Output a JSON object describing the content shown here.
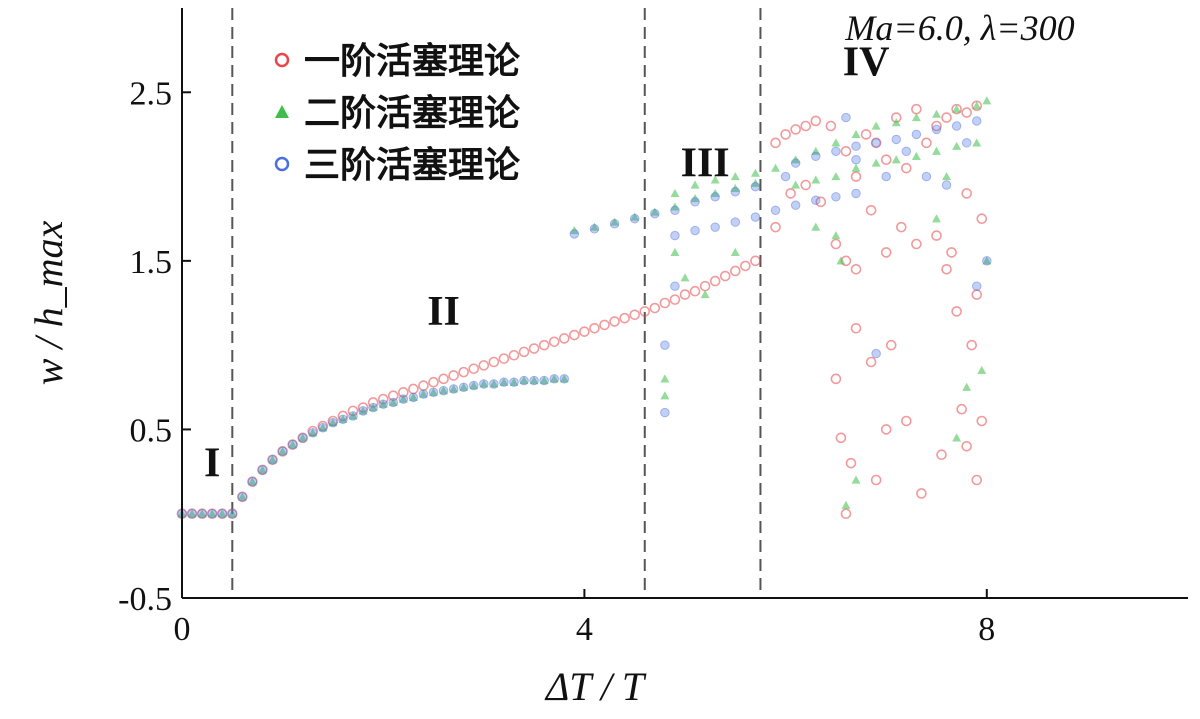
{
  "chart_data": {
    "type": "scatter",
    "title": "",
    "annotation": "Ma=6.0, λ=300",
    "xlabel": "ΔT / T",
    "ylabel": "w / h_max",
    "xlim": [
      0,
      10
    ],
    "ylim": [
      -0.5,
      3.0
    ],
    "xticks": [
      0,
      4,
      8
    ],
    "xtick_labels": [
      "0",
      "4",
      "8"
    ],
    "yticks": [
      -0.5,
      0.5,
      1.5,
      2.5
    ],
    "ytick_labels": [
      "-0.5",
      "0.5",
      "1.5",
      "2.5"
    ],
    "dividers": [
      0.5,
      4.6,
      5.75
    ],
    "regions": [
      {
        "label": "I",
        "x": 0.3,
        "y": 0.22
      },
      {
        "label": "II",
        "x": 2.6,
        "y": 1.12
      },
      {
        "label": "III",
        "x": 5.2,
        "y": 2.0
      },
      {
        "label": "IV",
        "x": 6.8,
        "y": 2.6
      }
    ],
    "legend": {
      "position": "top-left",
      "entries": [
        {
          "name": "一阶活塞理论",
          "marker": "circle",
          "color": "#e8474a"
        },
        {
          "name": "二阶活塞理论",
          "marker": "triangle",
          "color": "#3fbf4a"
        },
        {
          "name": "三阶活塞理论",
          "marker": "circle",
          "color": "#4a6fe0"
        }
      ]
    },
    "series": [
      {
        "name": "一阶活塞理论",
        "color": "#e8474a",
        "marker": "circle",
        "points": [
          [
            0.0,
            0.0
          ],
          [
            0.1,
            0.0
          ],
          [
            0.2,
            0.0
          ],
          [
            0.3,
            0.0
          ],
          [
            0.4,
            0.0
          ],
          [
            0.5,
            0.0
          ],
          [
            0.6,
            0.1
          ],
          [
            0.7,
            0.19
          ],
          [
            0.8,
            0.26
          ],
          [
            0.9,
            0.32
          ],
          [
            1.0,
            0.37
          ],
          [
            1.1,
            0.41
          ],
          [
            1.2,
            0.45
          ],
          [
            1.3,
            0.49
          ],
          [
            1.4,
            0.52
          ],
          [
            1.5,
            0.55
          ],
          [
            1.6,
            0.58
          ],
          [
            1.7,
            0.61
          ],
          [
            1.8,
            0.63
          ],
          [
            1.9,
            0.66
          ],
          [
            2.0,
            0.68
          ],
          [
            2.1,
            0.7
          ],
          [
            2.2,
            0.72
          ],
          [
            2.3,
            0.74
          ],
          [
            2.4,
            0.76
          ],
          [
            2.5,
            0.78
          ],
          [
            2.6,
            0.8
          ],
          [
            2.7,
            0.82
          ],
          [
            2.8,
            0.84
          ],
          [
            2.9,
            0.86
          ],
          [
            3.0,
            0.88
          ],
          [
            3.1,
            0.9
          ],
          [
            3.2,
            0.92
          ],
          [
            3.3,
            0.94
          ],
          [
            3.4,
            0.96
          ],
          [
            3.5,
            0.98
          ],
          [
            3.6,
            1.0
          ],
          [
            3.7,
            1.02
          ],
          [
            3.8,
            1.04
          ],
          [
            3.9,
            1.06
          ],
          [
            4.0,
            1.08
          ],
          [
            4.1,
            1.1
          ],
          [
            4.2,
            1.12
          ],
          [
            4.3,
            1.14
          ],
          [
            4.4,
            1.16
          ],
          [
            4.5,
            1.18
          ],
          [
            4.6,
            1.2
          ],
          [
            4.7,
            1.22
          ],
          [
            4.8,
            1.25
          ],
          [
            4.9,
            1.27
          ],
          [
            5.0,
            1.3
          ],
          [
            5.1,
            1.32
          ],
          [
            5.2,
            1.35
          ],
          [
            5.3,
            1.38
          ],
          [
            5.4,
            1.41
          ],
          [
            5.5,
            1.44
          ],
          [
            5.6,
            1.47
          ],
          [
            5.7,
            1.5
          ],
          [
            5.9,
            2.2
          ],
          [
            6.0,
            2.25
          ],
          [
            6.1,
            2.28
          ],
          [
            6.2,
            2.3
          ],
          [
            6.3,
            2.33
          ],
          [
            6.45,
            2.3
          ],
          [
            6.6,
            2.15
          ],
          [
            6.7,
            2.0
          ],
          [
            6.8,
            2.25
          ],
          [
            6.9,
            2.2
          ],
          [
            7.0,
            2.1
          ],
          [
            7.1,
            2.35
          ],
          [
            7.2,
            2.05
          ],
          [
            7.3,
            2.4
          ],
          [
            7.4,
            2.2
          ],
          [
            7.5,
            2.3
          ],
          [
            7.6,
            2.35
          ],
          [
            7.7,
            2.4
          ],
          [
            7.8,
            2.38
          ],
          [
            7.9,
            2.42
          ],
          [
            5.9,
            1.7
          ],
          [
            6.05,
            1.9
          ],
          [
            6.2,
            1.95
          ],
          [
            6.35,
            1.85
          ],
          [
            6.5,
            1.6
          ],
          [
            6.6,
            1.5
          ],
          [
            6.7,
            1.45
          ],
          [
            6.85,
            1.8
          ],
          [
            7.0,
            1.55
          ],
          [
            7.15,
            1.7
          ],
          [
            7.3,
            1.6
          ],
          [
            7.5,
            1.65
          ],
          [
            7.65,
            1.55
          ],
          [
            7.8,
            1.9
          ],
          [
            7.95,
            1.75
          ],
          [
            6.5,
            0.8
          ],
          [
            6.55,
            0.45
          ],
          [
            6.6,
            0.0
          ],
          [
            6.65,
            0.3
          ],
          [
            6.7,
            1.1
          ],
          [
            6.85,
            0.9
          ],
          [
            6.9,
            0.2
          ],
          [
            7.0,
            0.5
          ],
          [
            7.05,
            1.0
          ],
          [
            7.2,
            0.55
          ],
          [
            7.35,
            0.12
          ],
          [
            7.55,
            0.35
          ],
          [
            7.7,
            1.2
          ],
          [
            7.75,
            0.62
          ],
          [
            7.8,
            0.4
          ],
          [
            7.85,
            1.0
          ],
          [
            7.9,
            1.3
          ],
          [
            7.95,
            0.55
          ],
          [
            7.9,
            0.2
          ],
          [
            7.6,
            1.45
          ]
        ]
      },
      {
        "name": "二阶活塞理论",
        "color": "#3fbf4a",
        "marker": "triangle",
        "points": [
          [
            0.0,
            0.0
          ],
          [
            0.1,
            0.0
          ],
          [
            0.2,
            0.0
          ],
          [
            0.3,
            0.0
          ],
          [
            0.4,
            0.0
          ],
          [
            0.5,
            0.0
          ],
          [
            0.6,
            0.1
          ],
          [
            0.7,
            0.19
          ],
          [
            0.8,
            0.26
          ],
          [
            0.9,
            0.32
          ],
          [
            1.0,
            0.37
          ],
          [
            1.1,
            0.41
          ],
          [
            1.2,
            0.45
          ],
          [
            1.3,
            0.48
          ],
          [
            1.4,
            0.51
          ],
          [
            1.5,
            0.54
          ],
          [
            1.6,
            0.56
          ],
          [
            1.7,
            0.58
          ],
          [
            1.8,
            0.61
          ],
          [
            1.9,
            0.63
          ],
          [
            2.0,
            0.65
          ],
          [
            2.1,
            0.66
          ],
          [
            2.2,
            0.68
          ],
          [
            2.3,
            0.69
          ],
          [
            2.4,
            0.71
          ],
          [
            2.5,
            0.72
          ],
          [
            2.6,
            0.73
          ],
          [
            2.7,
            0.74
          ],
          [
            2.8,
            0.75
          ],
          [
            2.9,
            0.76
          ],
          [
            3.0,
            0.77
          ],
          [
            3.1,
            0.77
          ],
          [
            3.2,
            0.78
          ],
          [
            3.3,
            0.78
          ],
          [
            3.4,
            0.79
          ],
          [
            3.5,
            0.79
          ],
          [
            3.6,
            0.79
          ],
          [
            3.7,
            0.8
          ],
          [
            3.8,
            0.8
          ],
          [
            3.9,
            1.68
          ],
          [
            4.1,
            1.7
          ],
          [
            4.3,
            1.73
          ],
          [
            4.5,
            1.76
          ],
          [
            4.7,
            1.79
          ],
          [
            4.9,
            1.82
          ],
          [
            5.1,
            1.87
          ],
          [
            5.3,
            1.9
          ],
          [
            5.5,
            1.93
          ],
          [
            5.7,
            1.96
          ],
          [
            4.9,
            1.9
          ],
          [
            5.1,
            1.95
          ],
          [
            5.3,
            1.98
          ],
          [
            5.5,
            2.0
          ],
          [
            5.7,
            2.02
          ],
          [
            5.9,
            2.05
          ],
          [
            6.1,
            2.1
          ],
          [
            6.3,
            2.15
          ],
          [
            6.5,
            2.2
          ],
          [
            6.7,
            2.25
          ],
          [
            6.9,
            2.3
          ],
          [
            7.1,
            2.32
          ],
          [
            7.3,
            2.35
          ],
          [
            7.5,
            2.37
          ],
          [
            7.7,
            2.4
          ],
          [
            7.9,
            2.42
          ],
          [
            8.0,
            2.45
          ],
          [
            6.1,
            1.95
          ],
          [
            6.3,
            1.98
          ],
          [
            6.5,
            2.0
          ],
          [
            6.7,
            2.05
          ],
          [
            6.9,
            2.08
          ],
          [
            7.1,
            2.1
          ],
          [
            7.3,
            2.12
          ],
          [
            7.5,
            2.15
          ],
          [
            7.7,
            2.18
          ],
          [
            7.9,
            2.2
          ],
          [
            4.9,
            1.55
          ],
          [
            5.0,
            1.4
          ],
          [
            5.2,
            1.3
          ],
          [
            4.8,
            0.8
          ],
          [
            4.8,
            0.7
          ],
          [
            5.5,
            1.55
          ],
          [
            6.3,
            1.7
          ],
          [
            6.5,
            1.65
          ],
          [
            6.55,
            1.5
          ],
          [
            6.6,
            0.05
          ],
          [
            6.7,
            0.2
          ],
          [
            7.7,
            0.45
          ],
          [
            7.8,
            0.75
          ],
          [
            7.95,
            0.85
          ],
          [
            8.0,
            1.5
          ],
          [
            7.5,
            1.75
          ],
          [
            7.6,
            2.0
          ]
        ]
      },
      {
        "name": "三阶活塞理论",
        "color": "#4a6fe0",
        "marker": "circle",
        "points": [
          [
            0.0,
            0.0
          ],
          [
            0.1,
            0.0
          ],
          [
            0.2,
            0.0
          ],
          [
            0.3,
            0.0
          ],
          [
            0.4,
            0.0
          ],
          [
            0.5,
            0.0
          ],
          [
            0.6,
            0.1
          ],
          [
            0.7,
            0.19
          ],
          [
            0.8,
            0.26
          ],
          [
            0.9,
            0.32
          ],
          [
            1.0,
            0.37
          ],
          [
            1.1,
            0.41
          ],
          [
            1.2,
            0.45
          ],
          [
            1.3,
            0.48
          ],
          [
            1.4,
            0.51
          ],
          [
            1.5,
            0.54
          ],
          [
            1.6,
            0.56
          ],
          [
            1.7,
            0.58
          ],
          [
            1.8,
            0.61
          ],
          [
            1.9,
            0.63
          ],
          [
            2.0,
            0.65
          ],
          [
            2.1,
            0.66
          ],
          [
            2.2,
            0.68
          ],
          [
            2.3,
            0.69
          ],
          [
            2.4,
            0.71
          ],
          [
            2.5,
            0.72
          ],
          [
            2.6,
            0.73
          ],
          [
            2.7,
            0.74
          ],
          [
            2.8,
            0.75
          ],
          [
            2.9,
            0.76
          ],
          [
            3.0,
            0.77
          ],
          [
            3.1,
            0.77
          ],
          [
            3.2,
            0.78
          ],
          [
            3.3,
            0.78
          ],
          [
            3.4,
            0.79
          ],
          [
            3.5,
            0.79
          ],
          [
            3.6,
            0.79
          ],
          [
            3.7,
            0.8
          ],
          [
            3.8,
            0.8
          ],
          [
            3.9,
            1.66
          ],
          [
            4.1,
            1.69
          ],
          [
            4.3,
            1.72
          ],
          [
            4.5,
            1.75
          ],
          [
            4.7,
            1.78
          ],
          [
            4.9,
            1.8
          ],
          [
            5.1,
            1.85
          ],
          [
            5.3,
            1.88
          ],
          [
            5.5,
            1.91
          ],
          [
            5.7,
            1.94
          ],
          [
            4.9,
            1.65
          ],
          [
            5.1,
            1.68
          ],
          [
            5.3,
            1.7
          ],
          [
            5.5,
            1.73
          ],
          [
            5.7,
            1.76
          ],
          [
            5.9,
            1.8
          ],
          [
            6.1,
            1.83
          ],
          [
            6.3,
            1.86
          ],
          [
            6.5,
            1.88
          ],
          [
            6.7,
            1.9
          ],
          [
            6.1,
            2.08
          ],
          [
            6.3,
            2.12
          ],
          [
            6.5,
            2.15
          ],
          [
            6.7,
            2.18
          ],
          [
            6.9,
            2.2
          ],
          [
            7.1,
            2.22
          ],
          [
            7.3,
            2.25
          ],
          [
            7.5,
            2.28
          ],
          [
            7.7,
            2.3
          ],
          [
            7.9,
            2.33
          ],
          [
            4.8,
            0.6
          ],
          [
            4.8,
            1.0
          ],
          [
            4.9,
            1.35
          ],
          [
            6.0,
            2.0
          ],
          [
            6.6,
            2.35
          ],
          [
            6.7,
            2.1
          ],
          [
            7.0,
            2.0
          ],
          [
            7.2,
            2.15
          ],
          [
            7.4,
            2.0
          ],
          [
            7.6,
            1.95
          ],
          [
            7.8,
            2.2
          ],
          [
            8.0,
            1.5
          ],
          [
            6.9,
            0.95
          ],
          [
            7.9,
            1.35
          ]
        ]
      }
    ]
  }
}
